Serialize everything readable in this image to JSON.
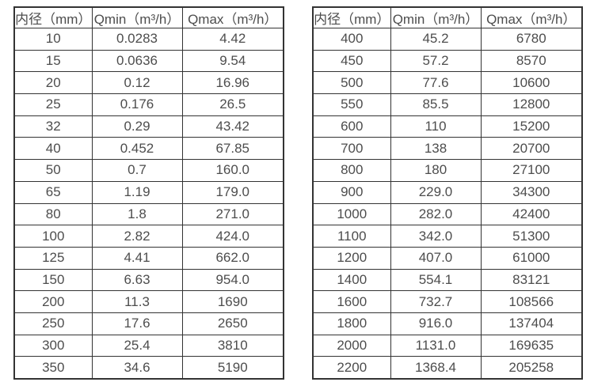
{
  "colors": {
    "background": "#ffffff",
    "border": "#333333",
    "text": "#4d4d4d"
  },
  "tables": [
    {
      "name": "small-diameter-flow-table",
      "headers": [
        "内径（mm）",
        "Qmin（m³/h）",
        "Qmax（m³/h）"
      ],
      "rows": [
        [
          "10",
          "0.0283",
          "4.42"
        ],
        [
          "15",
          "0.0636",
          "9.54"
        ],
        [
          "20",
          "0.12",
          "16.96"
        ],
        [
          "25",
          "0.176",
          "26.5"
        ],
        [
          "32",
          "0.29",
          "43.42"
        ],
        [
          "40",
          "0.452",
          "67.85"
        ],
        [
          "50",
          "0.7",
          "160.0"
        ],
        [
          "65",
          "1.19",
          "179.0"
        ],
        [
          "80",
          "1.8",
          "271.0"
        ],
        [
          "100",
          "2.82",
          "424.0"
        ],
        [
          "125",
          "4.41",
          "662.0"
        ],
        [
          "150",
          "6.63",
          "954.0"
        ],
        [
          "200",
          "11.3",
          "1690"
        ],
        [
          "250",
          "17.6",
          "2650"
        ],
        [
          "300",
          "25.4",
          "3810"
        ],
        [
          "350",
          "34.6",
          "5190"
        ]
      ]
    },
    {
      "name": "large-diameter-flow-table",
      "headers": [
        "内径（mm）",
        "Qmin（m³/h）",
        "Qmax（m³/h）"
      ],
      "rows": [
        [
          "400",
          "45.2",
          "6780"
        ],
        [
          "450",
          "57.2",
          "8570"
        ],
        [
          "500",
          "77.6",
          "10600"
        ],
        [
          "550",
          "85.5",
          "12800"
        ],
        [
          "600",
          "110",
          "15200"
        ],
        [
          "700",
          "138",
          "20700"
        ],
        [
          "800",
          "180",
          "27100"
        ],
        [
          "900",
          "229.0",
          "34300"
        ],
        [
          "1000",
          "282.0",
          "42400"
        ],
        [
          "1100",
          "342.0",
          "51300"
        ],
        [
          "1200",
          "407.0",
          "61000"
        ],
        [
          "1400",
          "554.1",
          "83121"
        ],
        [
          "1600",
          "732.7",
          "108566"
        ],
        [
          "1800",
          "916.0",
          "137404"
        ],
        [
          "2000",
          "1131.0",
          "169635"
        ],
        [
          "2200",
          "1368.4",
          "205258"
        ]
      ]
    }
  ],
  "chart_data": [
    {
      "type": "table",
      "title": "",
      "columns": [
        "内径（mm）",
        "Qmin（m³/h）",
        "Qmax（m³/h）"
      ],
      "rows": [
        [
          10,
          0.0283,
          4.42
        ],
        [
          15,
          0.0636,
          9.54
        ],
        [
          20,
          0.12,
          16.96
        ],
        [
          25,
          0.176,
          26.5
        ],
        [
          32,
          0.29,
          43.42
        ],
        [
          40,
          0.452,
          67.85
        ],
        [
          50,
          0.7,
          160.0
        ],
        [
          65,
          1.19,
          179.0
        ],
        [
          80,
          1.8,
          271.0
        ],
        [
          100,
          2.82,
          424.0
        ],
        [
          125,
          4.41,
          662.0
        ],
        [
          150,
          6.63,
          954.0
        ],
        [
          200,
          11.3,
          1690
        ],
        [
          250,
          17.6,
          2650
        ],
        [
          300,
          25.4,
          3810
        ],
        [
          350,
          34.6,
          5190
        ]
      ]
    },
    {
      "type": "table",
      "title": "",
      "columns": [
        "内径（mm）",
        "Qmin（m³/h）",
        "Qmax（m³/h）"
      ],
      "rows": [
        [
          400,
          45.2,
          6780
        ],
        [
          450,
          57.2,
          8570
        ],
        [
          500,
          77.6,
          10600
        ],
        [
          550,
          85.5,
          12800
        ],
        [
          600,
          110,
          15200
        ],
        [
          700,
          138,
          20700
        ],
        [
          800,
          180,
          27100
        ],
        [
          900,
          229.0,
          34300
        ],
        [
          1000,
          282.0,
          42400
        ],
        [
          1100,
          342.0,
          51300
        ],
        [
          1200,
          407.0,
          61000
        ],
        [
          1400,
          554.1,
          83121
        ],
        [
          1600,
          732.7,
          108566
        ],
        [
          1800,
          916.0,
          137404
        ],
        [
          2000,
          1131.0,
          169635
        ],
        [
          2200,
          1368.4,
          205258
        ]
      ]
    }
  ]
}
